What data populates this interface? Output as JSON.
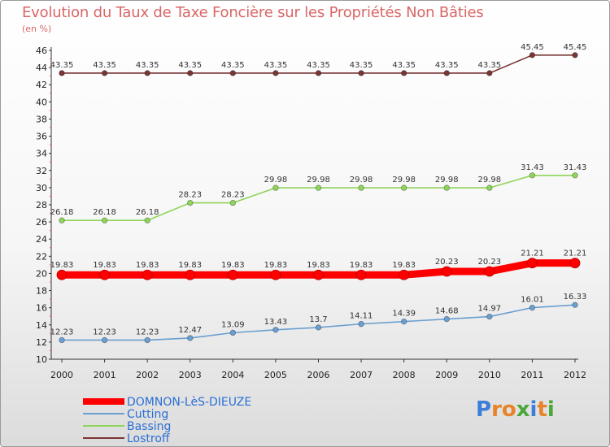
{
  "header": {
    "title": "Evolution du Taux de Taxe Foncière sur les Propriétés Non Bâties",
    "subtitle": "(en %)"
  },
  "logo": {
    "text": "Proxiti",
    "letters": [
      "P",
      "r",
      "o",
      "x",
      "i",
      "t",
      "i"
    ],
    "letter_colors": [
      "#3b7fd9",
      "#e8832a",
      "#e8832a",
      "#4aa83b",
      "#3b7fd9",
      "#e8832a",
      "#4aa83b"
    ]
  },
  "chart_data": {
    "type": "line",
    "x": [
      "2000",
      "2001",
      "2002",
      "2003",
      "2004",
      "2005",
      "2006",
      "2007",
      "2008",
      "2009",
      "2010",
      "2011",
      "2012"
    ],
    "ylim": [
      10,
      46
    ],
    "yticks": [
      "10",
      "12",
      "14",
      "16",
      "18",
      "20",
      "22",
      "24",
      "26",
      "28",
      "30",
      "32",
      "34",
      "36",
      "38",
      "40",
      "42",
      "44",
      "46"
    ],
    "grid": false,
    "legend_position": "bottom-left",
    "series": [
      {
        "name": "DOMNON-LèS-DIEUZE",
        "color": "#ff0000",
        "values": [
          19.83,
          19.83,
          19.83,
          19.83,
          19.83,
          19.83,
          19.83,
          19.83,
          19.83,
          20.23,
          20.23,
          21.21,
          21.21
        ],
        "labels": [
          "19.83",
          "19.83",
          "19.83",
          "19.83",
          "19.83",
          "19.83",
          "19.83",
          "19.83",
          "19.83",
          "20.23",
          "20.23",
          "21.21",
          "21.21"
        ]
      },
      {
        "name": "Cutting",
        "color": "#6a9fd0",
        "values": [
          12.23,
          12.23,
          12.23,
          12.47,
          13.09,
          13.43,
          13.7,
          14.11,
          14.39,
          14.68,
          14.97,
          16.01,
          16.33
        ],
        "labels": [
          "12.23",
          "12.23",
          "12.23",
          "12.47",
          "13.09",
          "13.43",
          "13.7",
          "14.11",
          "14.39",
          "14.68",
          "14.97",
          "16.01",
          "16.33"
        ]
      },
      {
        "name": "Bassing",
        "color": "#8fd45a",
        "values": [
          26.18,
          26.18,
          26.18,
          28.23,
          28.23,
          29.98,
          29.98,
          29.98,
          29.98,
          29.98,
          29.98,
          31.43,
          31.43
        ],
        "labels": [
          "26.18",
          "26.18",
          "26.18",
          "28.23",
          "28.23",
          "29.98",
          "29.98",
          "29.98",
          "29.98",
          "29.98",
          "29.98",
          "31.43",
          "31.43"
        ]
      },
      {
        "name": "Lostroff",
        "color": "#7a3535",
        "values": [
          43.35,
          43.35,
          43.35,
          43.35,
          43.35,
          43.35,
          43.35,
          43.35,
          43.35,
          43.35,
          43.35,
          45.45,
          45.45
        ],
        "labels": [
          "43.35",
          "43.35",
          "43.35",
          "43.35",
          "43.35",
          "43.35",
          "43.35",
          "43.35",
          "43.35",
          "43.35",
          "43.35",
          "45.45",
          "45.45"
        ]
      }
    ]
  }
}
